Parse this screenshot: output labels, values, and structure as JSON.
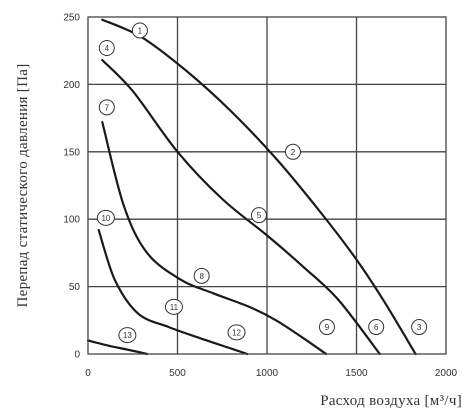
{
  "chart_data": {
    "type": "line",
    "title": "",
    "xlabel": "Расход воздуха [м³/ч]",
    "ylabel": "Перепад статического давления [Па]",
    "xlim": [
      0,
      2000
    ],
    "ylim": [
      0,
      250
    ],
    "x_ticks": [
      "0",
      "500",
      "1000",
      "1500",
      "2000"
    ],
    "y_ticks": [
      "0",
      "50",
      "100",
      "150",
      "200",
      "250"
    ],
    "grid": true,
    "colors": {
      "curve": "#1a1a1a",
      "grid": "#444444",
      "text": "#333333"
    },
    "series": [
      {
        "values": [
          [
            80,
            248
          ],
          [
            300,
            235
          ],
          [
            550,
            210
          ],
          [
            800,
            180
          ],
          [
            1050,
            145
          ],
          [
            1300,
            105
          ],
          [
            1500,
            70
          ],
          [
            1650,
            40
          ],
          [
            1830,
            0
          ]
        ]
      },
      {
        "values": [
          [
            80,
            218
          ],
          [
            250,
            195
          ],
          [
            500,
            150
          ],
          [
            750,
            115
          ],
          [
            1000,
            88
          ],
          [
            1200,
            65
          ],
          [
            1400,
            40
          ],
          [
            1630,
            0
          ]
        ]
      },
      {
        "values": [
          [
            80,
            172
          ],
          [
            200,
            110
          ],
          [
            330,
            75
          ],
          [
            520,
            55
          ],
          [
            700,
            45
          ],
          [
            900,
            35
          ],
          [
            1050,
            25
          ],
          [
            1200,
            12
          ],
          [
            1330,
            0
          ]
        ]
      },
      {
        "values": [
          [
            60,
            92
          ],
          [
            150,
            55
          ],
          [
            280,
            30
          ],
          [
            450,
            20
          ],
          [
            620,
            12
          ],
          [
            800,
            4
          ],
          [
            890,
            0
          ]
        ]
      },
      {
        "values": [
          [
            0,
            10
          ],
          [
            120,
            6
          ],
          [
            230,
            3
          ],
          [
            330,
            0
          ]
        ]
      }
    ],
    "curve_labels": [
      {
        "text": "1",
        "x": 290,
        "y": 240
      },
      {
        "text": "2",
        "x": 1145,
        "y": 150
      },
      {
        "text": "3",
        "x": 1850,
        "y": 20
      },
      {
        "text": "4",
        "x": 105,
        "y": 227
      },
      {
        "text": "5",
        "x": 955,
        "y": 103
      },
      {
        "text": "6",
        "x": 1610,
        "y": 20
      },
      {
        "text": "7",
        "x": 105,
        "y": 183
      },
      {
        "text": "8",
        "x": 635,
        "y": 58
      },
      {
        "text": "9",
        "x": 1335,
        "y": 20
      },
      {
        "text": "10",
        "x": 100,
        "y": 101
      },
      {
        "text": "11",
        "x": 480,
        "y": 35
      },
      {
        "text": "12",
        "x": 830,
        "y": 16
      },
      {
        "text": "13",
        "x": 220,
        "y": 14
      }
    ]
  }
}
